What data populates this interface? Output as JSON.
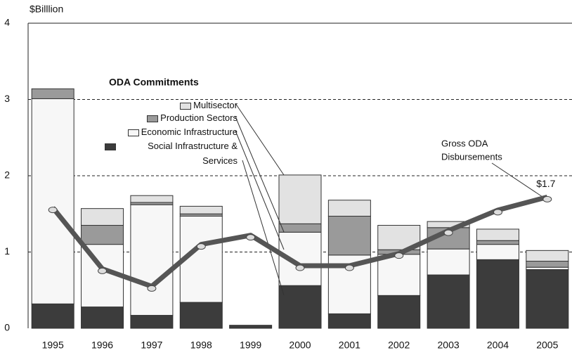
{
  "chart_data": {
    "type": "bar",
    "stacked": true,
    "y_label": "$Billlion",
    "categories": [
      "1995",
      "1996",
      "1997",
      "1998",
      "1999",
      "2000",
      "2001",
      "2002",
      "2003",
      "2004",
      "2005"
    ],
    "series": [
      {
        "name": "Social Infrastructure & Services",
        "color": "#3c3c3c",
        "values": [
          0.32,
          0.28,
          0.17,
          0.34,
          0.04,
          0.56,
          0.19,
          0.43,
          0.7,
          0.9,
          0.77
        ]
      },
      {
        "name": "Economic Infrastructure",
        "color": "#f7f7f7",
        "values": [
          2.69,
          0.82,
          1.45,
          1.13,
          0,
          0.7,
          0.77,
          0.54,
          0.34,
          0.2,
          0.03
        ]
      },
      {
        "name": "Production Sectors",
        "color": "#9a9a9a",
        "values": [
          0.13,
          0.25,
          0.03,
          0.03,
          0,
          0.11,
          0.51,
          0.06,
          0.28,
          0.05,
          0.08
        ]
      },
      {
        "name": "Multisector",
        "color": "#e2e2e2",
        "values": [
          0,
          0.22,
          0.09,
          0.1,
          0,
          0.64,
          0.21,
          0.32,
          0.08,
          0.15,
          0.14
        ]
      }
    ],
    "line": {
      "name": "Gross ODA Disbursements",
      "color": "#555555",
      "values": [
        1.58,
        0.78,
        0.55,
        1.1,
        1.22,
        0.82,
        0.82,
        0.98,
        1.28,
        1.55,
        1.72
      ],
      "value_labels": [
        null,
        null,
        null,
        null,
        null,
        null,
        null,
        null,
        null,
        null,
        "$1.7"
      ]
    },
    "annotations": [
      "ODA Commitments",
      "Gross ODA",
      "Disbursements"
    ],
    "ylim": [
      0,
      4
    ],
    "yticks": [
      0,
      1,
      2,
      3,
      4
    ],
    "grid": true
  }
}
